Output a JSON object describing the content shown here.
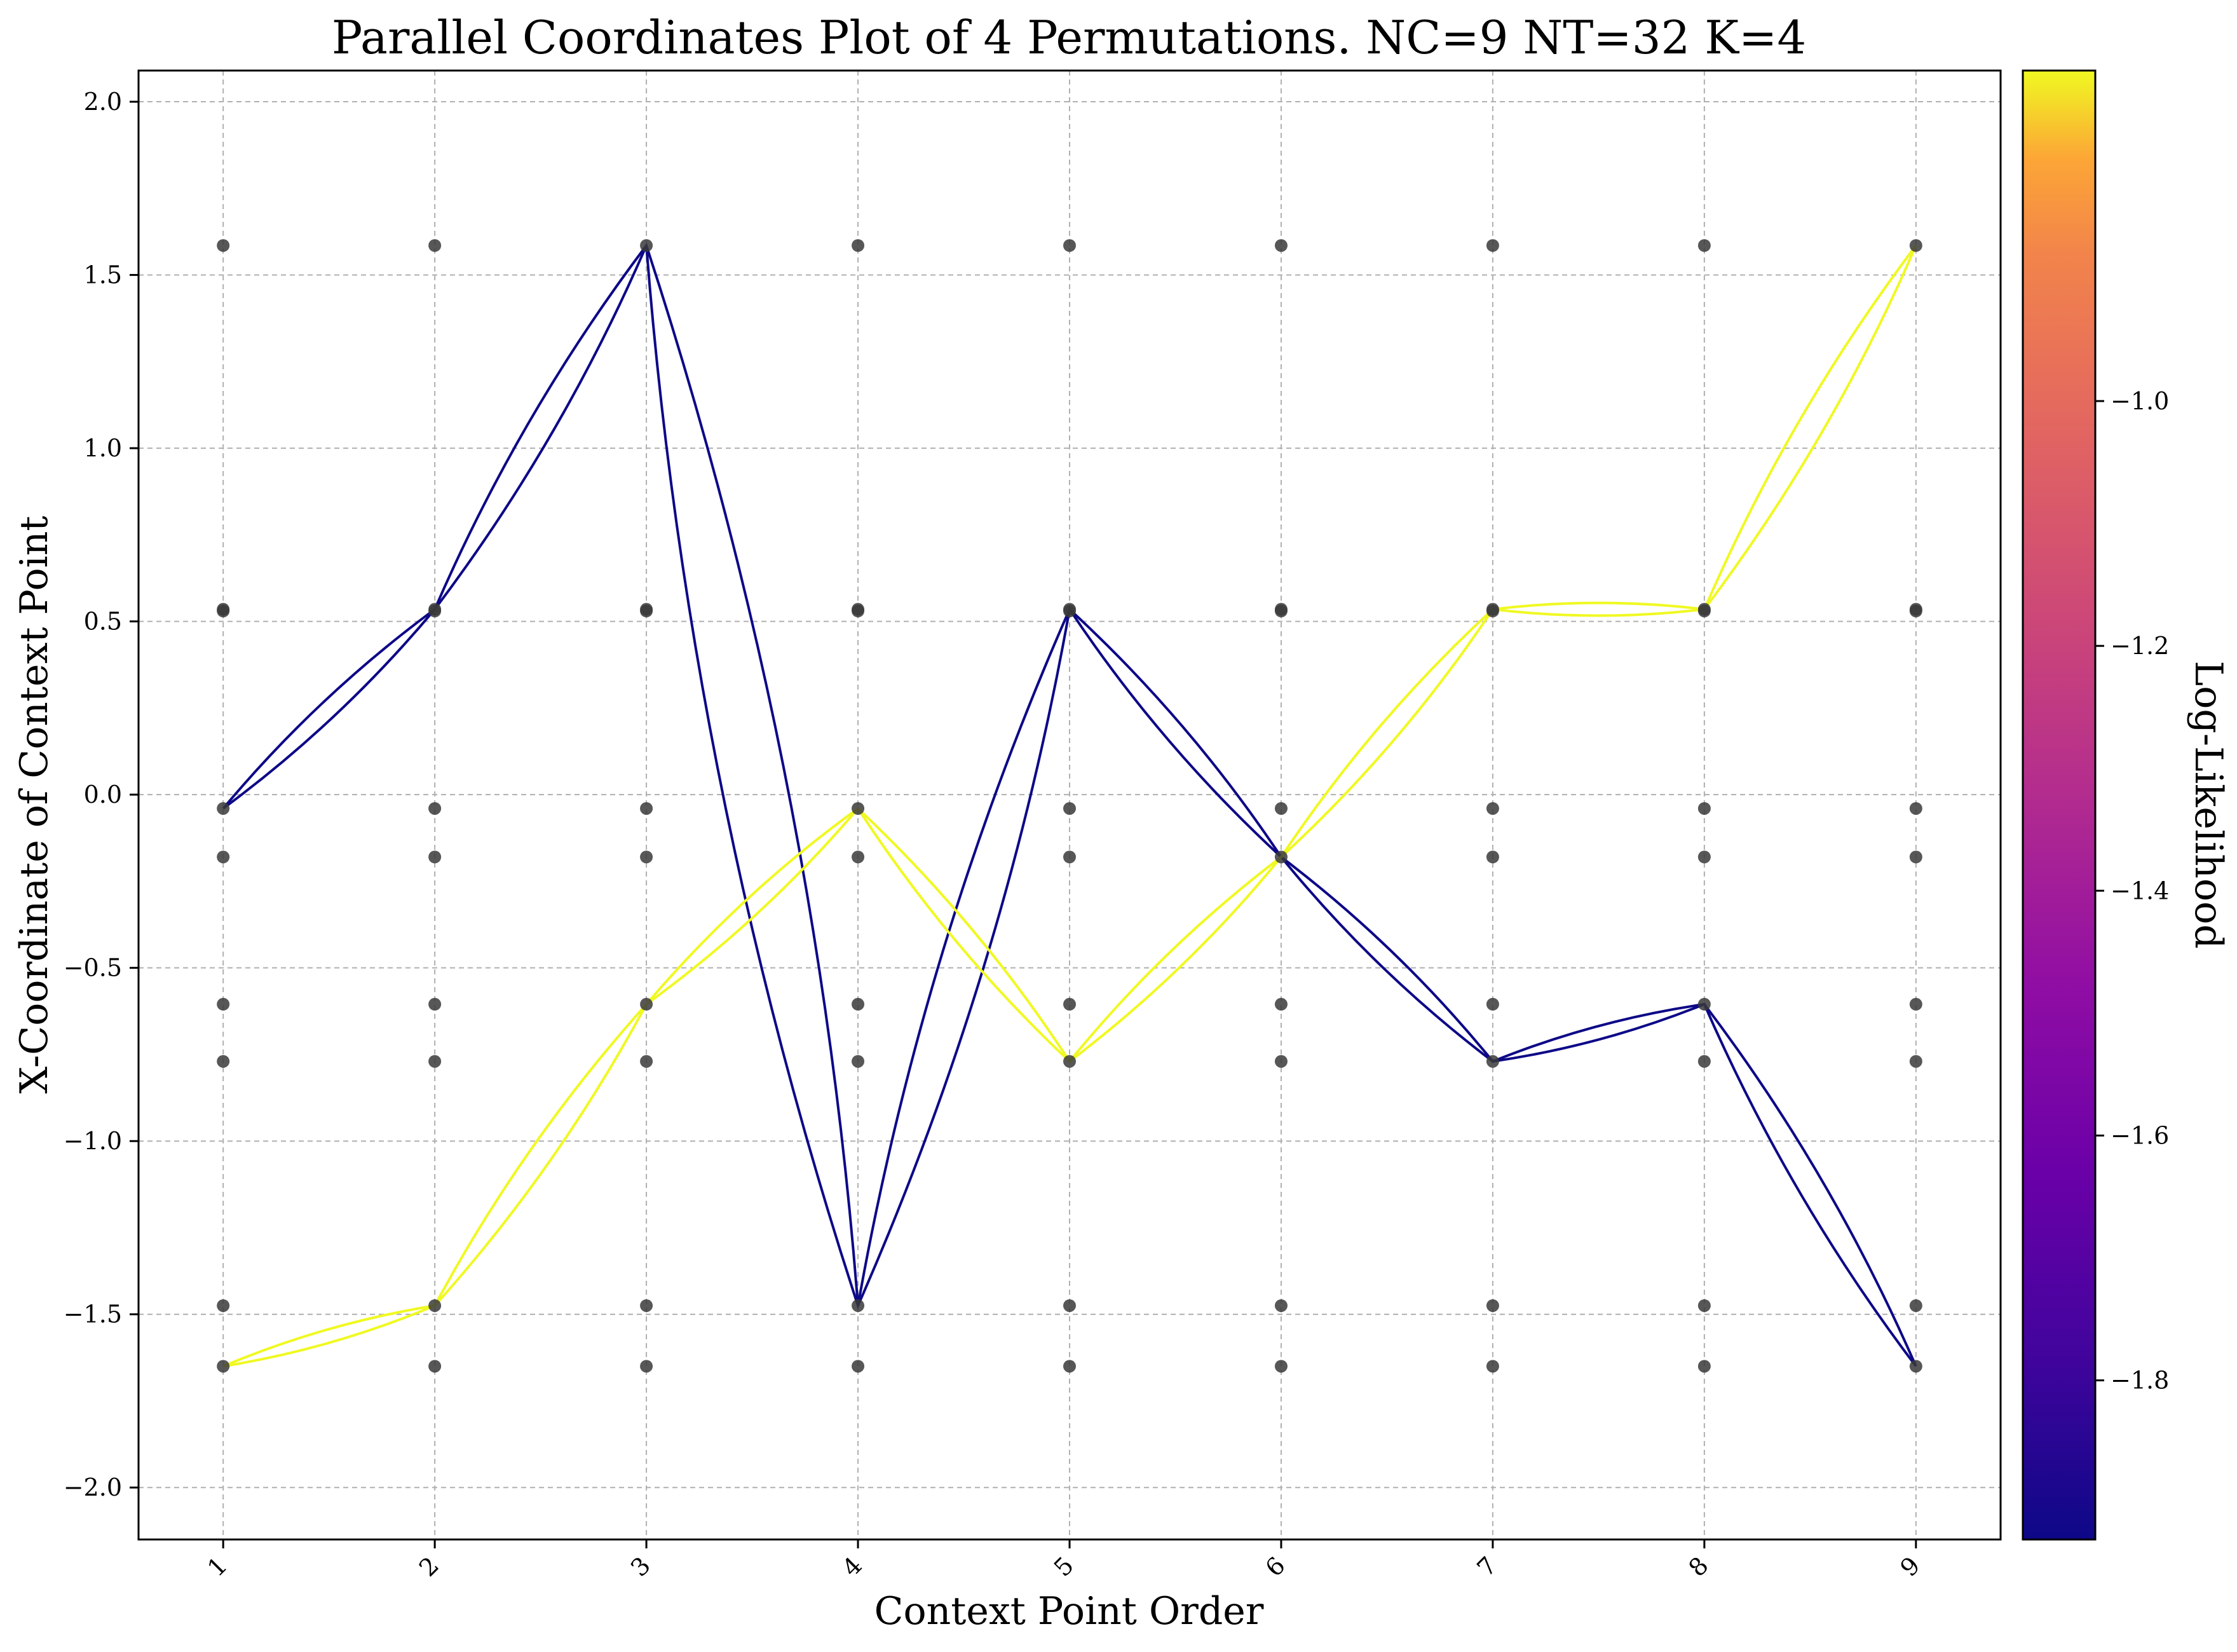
{
  "chart_data": {
    "type": "line",
    "title": "Parallel Coordinates Plot of 4 Permutations. NC=9 NT=32 K=4",
    "xlabel": "Context Point Order",
    "ylabel": "X-Coordinate of Context Point",
    "x_ticks": [
      "1",
      "2",
      "3",
      "4",
      "5",
      "6",
      "7",
      "8",
      "9"
    ],
    "y_ticks": [
      "−2.0",
      "−1.5",
      "−1.0",
      "−0.5",
      "0.0",
      "0.5",
      "1.0",
      "1.5",
      "2.0"
    ],
    "y_tick_values": [
      -2.0,
      -1.5,
      -1.0,
      -0.5,
      0.0,
      0.5,
      1.0,
      1.5,
      2.0
    ],
    "xlim": [
      0.6,
      9.4
    ],
    "ylim": [
      -2.15,
      2.09
    ],
    "grid": true,
    "context_point_values": [
      1.585,
      0.535,
      0.53,
      -0.04,
      -0.18,
      -0.605,
      -0.77,
      -1.475,
      -1.65
    ],
    "colorbar": {
      "label": "Log-Likelihood",
      "colormap": "plasma",
      "range": [
        -1.93,
        -0.73
      ],
      "ticks": [
        "−1.8",
        "−1.6",
        "−1.4",
        "−1.2",
        "−1.0"
      ],
      "tick_values": [
        -1.8,
        -1.6,
        -1.4,
        -1.2,
        -1.0
      ]
    },
    "series": [
      {
        "log_likelihood": -1.93,
        "color": "#0d0887",
        "curvature": 0.06,
        "values": [
          -0.04,
          0.535,
          1.585,
          -1.475,
          0.535,
          -0.18,
          -0.77,
          -0.605,
          -1.65
        ]
      },
      {
        "log_likelihood": -1.93,
        "color": "#0d0887",
        "curvature": -0.06,
        "values": [
          -0.04,
          0.535,
          1.585,
          -1.475,
          0.535,
          -0.18,
          -0.77,
          -0.605,
          -1.65
        ]
      },
      {
        "log_likelihood": -0.73,
        "color": "#f0f921",
        "curvature": 0.06,
        "values": [
          -1.65,
          -1.475,
          -0.605,
          -0.04,
          -0.77,
          -0.18,
          0.535,
          0.535,
          1.585
        ]
      },
      {
        "log_likelihood": -0.73,
        "color": "#f0f921",
        "curvature": -0.06,
        "values": [
          -1.65,
          -1.475,
          -0.605,
          -0.04,
          -0.77,
          -0.18,
          0.535,
          0.535,
          1.585
        ]
      }
    ]
  }
}
